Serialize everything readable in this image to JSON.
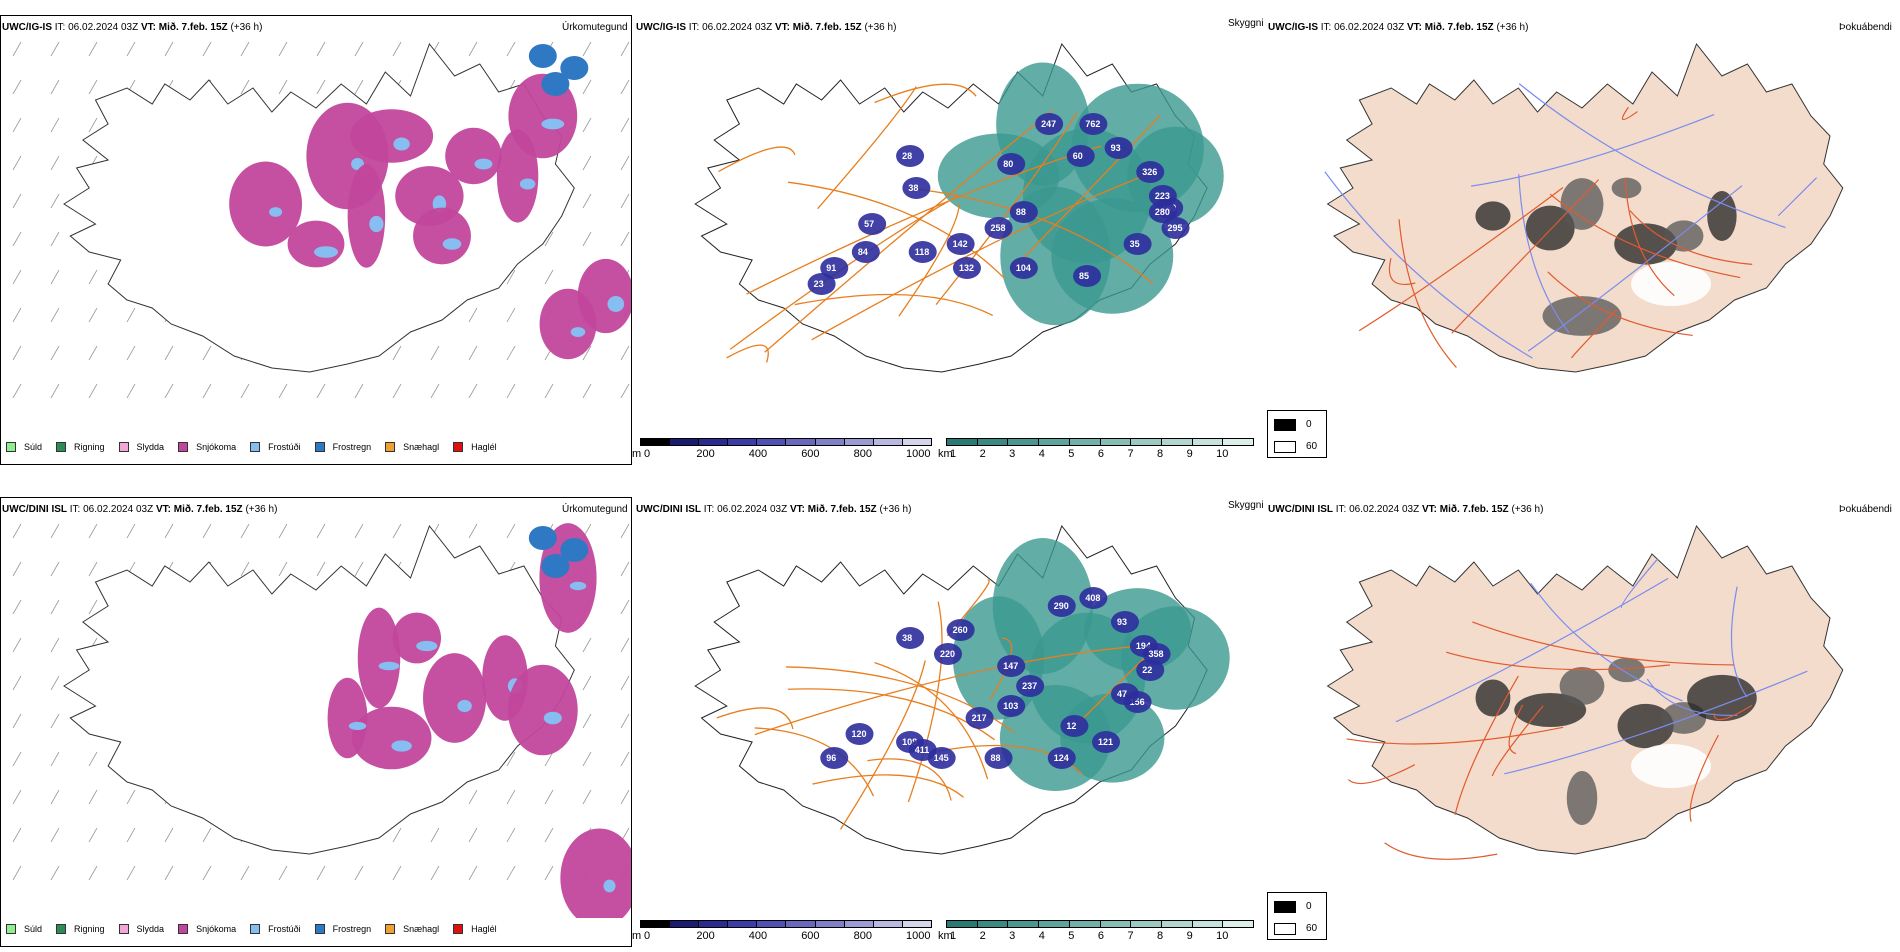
{
  "rows": [
    {
      "model": "UWC/IG-IS",
      "it_label": "IT:",
      "it_value": "06.02.2024 03Z",
      "vt_label": "VT:",
      "vt_value": "Mið. 7.feb. 15Z",
      "lead": "(+36 h)",
      "labels": [
        "91",
        "84",
        "118",
        "132",
        "104",
        "85",
        "142",
        "258",
        "88",
        "80",
        "60",
        "280",
        "247",
        "762",
        "93",
        "326",
        "223",
        "280",
        "295",
        "28",
        "38",
        "57",
        "23",
        "35"
      ]
    },
    {
      "model": "UWC/DINI ISL",
      "it_label": "IT:",
      "it_value": "06.02.2024 03Z",
      "vt_label": "VT:",
      "vt_value": "Mið. 7.feb. 15Z",
      "lead": "(+36 h)",
      "labels": [
        "96",
        "120",
        "108",
        "145",
        "88",
        "124",
        "217",
        "103",
        "237",
        "147",
        "260",
        "220",
        "290",
        "408",
        "93",
        "194",
        "358",
        "22",
        "156",
        "47",
        "121",
        "12",
        "411",
        "38"
      ]
    }
  ],
  "panel_titles": {
    "precip_type": "Úrkomutegund",
    "cloud_base": "Skyggni",
    "fog_index": "Þokuábendi"
  },
  "precip_legend": [
    {
      "label": "Súld",
      "color": "#90ee90"
    },
    {
      "label": "Rigning",
      "color": "#2e8b57"
    },
    {
      "label": "Slydda",
      "color": "#f4a6d7"
    },
    {
      "label": "Snjókoma",
      "color": "#c2479c"
    },
    {
      "label": "Frostúði",
      "color": "#87bdf0"
    },
    {
      "label": "Frostregn",
      "color": "#2f78c4"
    },
    {
      "label": "Snæhagl",
      "color": "#f0a030"
    },
    {
      "label": "Haglél",
      "color": "#e01010"
    }
  ],
  "cloud_scale": {
    "unit": "m",
    "ticks": [
      "0",
      "200",
      "400",
      "600",
      "800",
      "1000"
    ],
    "colors": [
      "#000000",
      "#1a1a6e",
      "#2a2a90",
      "#3c3ca8",
      "#5050b4",
      "#6868bc",
      "#8080c8",
      "#9c9cd4",
      "#b8b8e0",
      "#d4d4ec"
    ]
  },
  "vis_scale": {
    "unit": "km",
    "ticks": [
      "1",
      "2",
      "3",
      "4",
      "5",
      "6",
      "7",
      "8",
      "9",
      "10"
    ],
    "colors": [
      "#2a7a74",
      "#3a8a82",
      "#4b978f",
      "#5ea49c",
      "#72b1a9",
      "#86bdb5",
      "#9bcac2",
      "#b0d6cf",
      "#c6e2dc",
      "#dcefea"
    ]
  },
  "fog_legend": [
    {
      "value": "0",
      "color": "#000000"
    },
    {
      "value": "60",
      "color": "#ffffff"
    }
  ],
  "colors": {
    "snow": "#c2479c",
    "frost_drizzle": "#87bdf0",
    "frost_rain": "#2f78c4",
    "teal": "#3b9890",
    "low_cloud": "#2d2d9c",
    "road": "#e87e1e",
    "land_fog": "#f3dccb",
    "road_fog": "#e25a2e",
    "river": "#7a8cf0"
  }
}
